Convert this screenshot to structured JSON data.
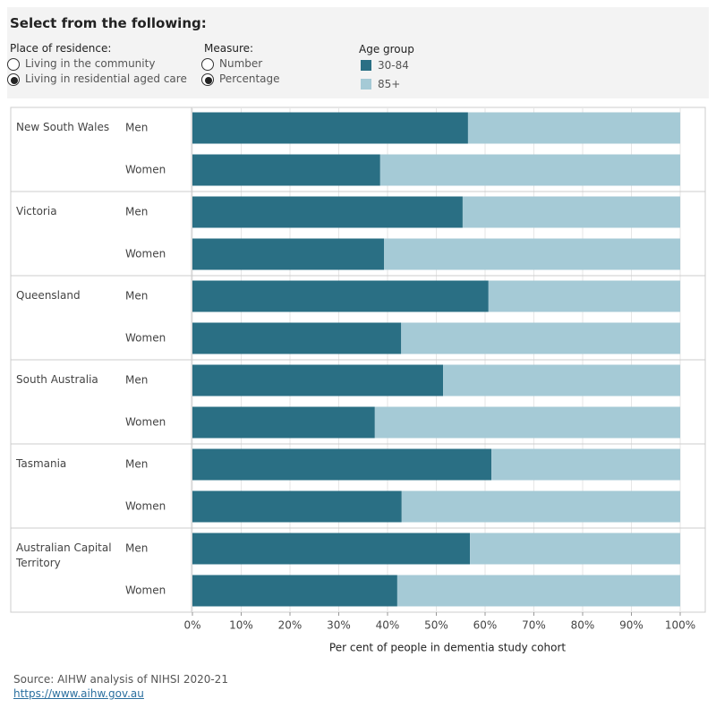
{
  "panel_title": "Select from the following:",
  "controls": [
    {
      "label": "Place of residence:",
      "options": [
        "Living in the community",
        "Living in residential aged care"
      ],
      "selected": 1
    },
    {
      "label": "Measure:",
      "options": [
        "Number",
        "Percentage"
      ],
      "selected": 1
    }
  ],
  "chart_data": {
    "type": "stacked_bar_horizontal",
    "legend_title": "Age group",
    "groups": [
      "New South Wales",
      "Victoria",
      "Queensland",
      "South Australia",
      "Tasmania",
      "Australian Capital Territory"
    ],
    "categories": [
      "Men",
      "Women",
      "Men",
      "Women",
      "Men",
      "Women",
      "Men",
      "Women",
      "Men",
      "Women",
      "Men",
      "Women"
    ],
    "series": [
      {
        "name": "30-84",
        "color": "#2a6f84",
        "values": [
          56.5,
          38.5,
          55.4,
          39.3,
          60.7,
          42.8,
          51.4,
          37.4,
          61.3,
          42.9,
          56.9,
          42.0
        ]
      },
      {
        "name": "85+",
        "color": "#a5cad6",
        "values": [
          43.5,
          61.5,
          44.6,
          60.7,
          39.3,
          57.2,
          48.6,
          62.6,
          38.7,
          57.1,
          43.1,
          58.0
        ]
      }
    ],
    "xlim": [
      0,
      100
    ],
    "xticks": [
      {
        "value": 0,
        "label": "0%"
      },
      {
        "value": 10,
        "label": "10%"
      },
      {
        "value": 20,
        "label": "20%"
      },
      {
        "value": 30,
        "label": "30%"
      },
      {
        "value": 40,
        "label": "40%"
      },
      {
        "value": 50,
        "label": "50%"
      },
      {
        "value": 60,
        "label": "60%"
      },
      {
        "value": 70,
        "label": "70%"
      },
      {
        "value": 80,
        "label": "80%"
      },
      {
        "value": 90,
        "label": "90%"
      },
      {
        "value": 100,
        "label": "100%"
      }
    ],
    "x_label": "Per cent of people in dementia study cohort",
    "grid": true
  },
  "source": "Source: AIHW analysis of NIHSI 2020-21",
  "link": "https://www.aihw.gov.au"
}
